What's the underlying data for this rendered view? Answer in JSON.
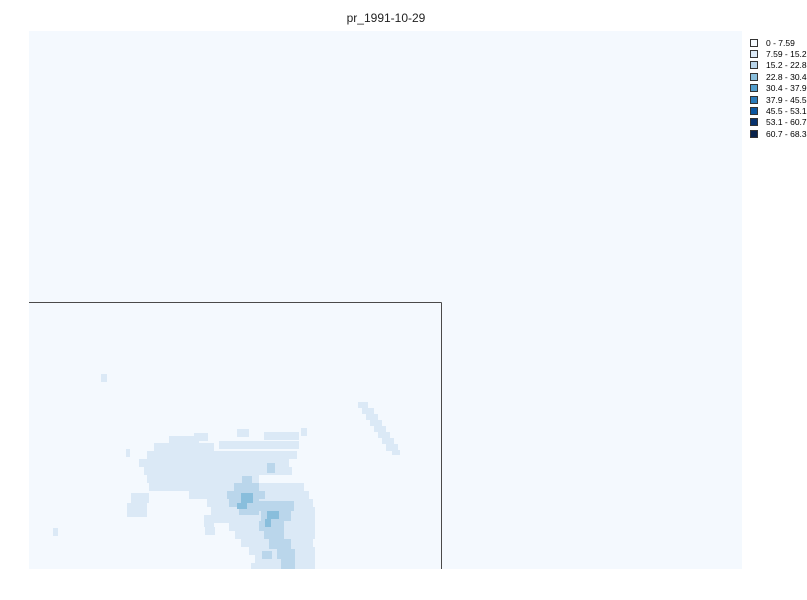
{
  "title": "pr_1991-10-29",
  "background_color": "#f4f9fe",
  "boundary_color": "#4a4a4a",
  "legend": {
    "items": [
      {
        "label": "0 - 7.59",
        "color": "#f7fbff"
      },
      {
        "label": "7.59 - 15.2",
        "color": "#dbe9f6"
      },
      {
        "label": "15.2 - 22.8",
        "color": "#bad6eb"
      },
      {
        "label": "22.8 - 30.4",
        "color": "#89bedc"
      },
      {
        "label": "30.4 - 37.9",
        "color": "#539ecd"
      },
      {
        "label": "37.9 - 45.5",
        "color": "#2b7bba"
      },
      {
        "label": "45.5 - 53.1",
        "color": "#0b559f"
      },
      {
        "label": "53.1 - 60.7",
        "color": "#08326e"
      },
      {
        "label": "60.7 - 68.3",
        "color": "#08224a"
      }
    ]
  }
}
